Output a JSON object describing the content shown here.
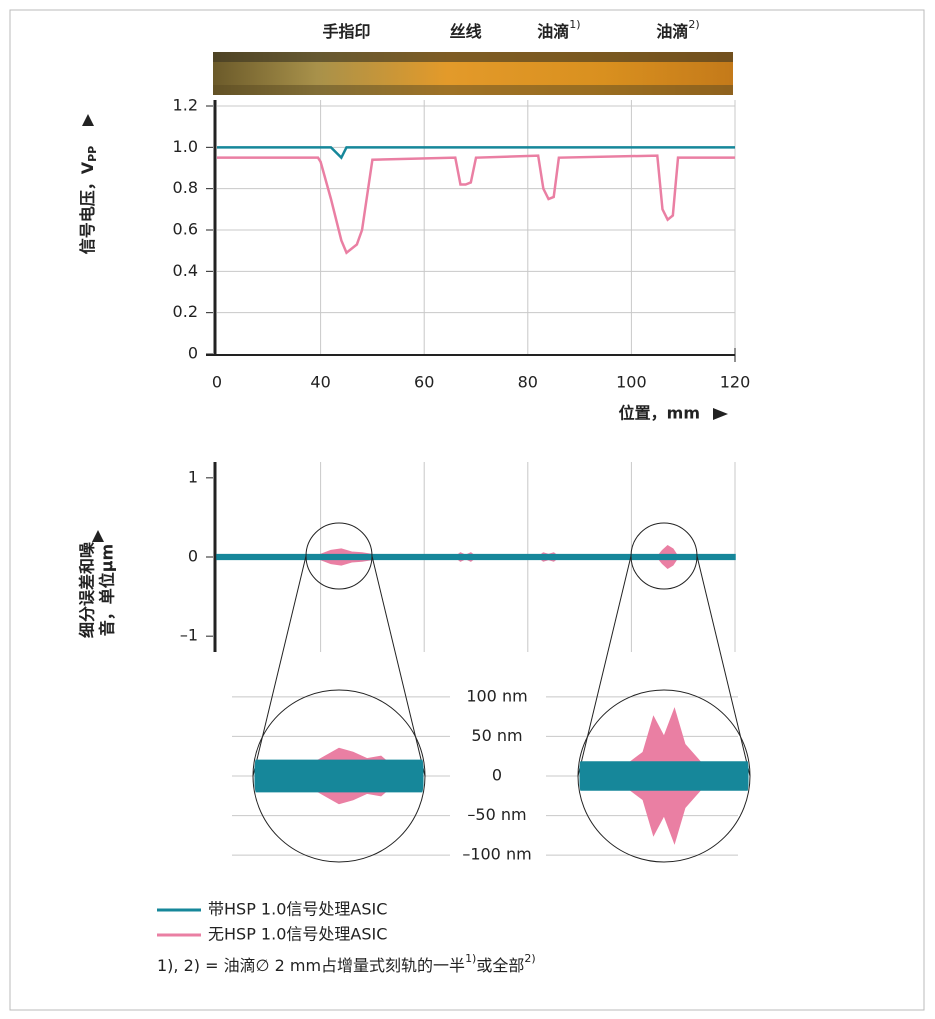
{
  "chart_data": [
    {
      "type": "line",
      "annotations": [
        {
          "text": "手指印",
          "x": 45
        },
        {
          "text": "丝线",
          "x": 68
        },
        {
          "text": "油滴",
          "sup": "1)",
          "x": 86
        },
        {
          "text": "油滴",
          "sup": "2)",
          "x": 109
        }
      ],
      "ylabel": "信号电压，V",
      "ylabel_sub": "PP",
      "xlabel": "位置，mm",
      "x": [
        0,
        39,
        40,
        42,
        44,
        45,
        47,
        48,
        50,
        66,
        67,
        68,
        69,
        70,
        82,
        83,
        84,
        85,
        86,
        105,
        106,
        107,
        108,
        109,
        120
      ],
      "series": [
        {
          "name": "带HSP 1.0信号处理ASIC",
          "color": "#16879a",
          "values": [
            1,
            1,
            1,
            1,
            0.95,
            1,
            1,
            1,
            1,
            1,
            1,
            1,
            1,
            1,
            1,
            1,
            1,
            1,
            1,
            1,
            1,
            1,
            1,
            1,
            1
          ]
        },
        {
          "name": "无HSP 1.0信号处理ASIC",
          "color": "#ea7fa3",
          "values": [
            0.95,
            0.95,
            0.93,
            0.75,
            0.55,
            0.49,
            0.53,
            0.6,
            0.94,
            0.95,
            0.82,
            0.82,
            0.83,
            0.95,
            0.96,
            0.8,
            0.75,
            0.76,
            0.95,
            0.96,
            0.7,
            0.65,
            0.67,
            0.95,
            0.95
          ]
        }
      ],
      "xlim": [
        0,
        120
      ],
      "xticks": [
        0,
        40,
        60,
        80,
        100,
        120
      ],
      "ylim": [
        0,
        1.2
      ],
      "yticks": [
        0,
        0.2,
        0.4,
        0.6,
        0.8,
        {
          "value": 1,
          "label": "1.0"
        },
        1.2
      ],
      "grid": true
    },
    {
      "type": "envelope",
      "ylabel": [
        "细分误差和噪",
        "音，单位µm"
      ],
      "x": [
        0,
        38,
        40,
        42,
        44,
        46,
        48,
        50,
        52,
        66,
        67,
        68,
        69,
        70,
        82,
        83,
        84,
        85,
        86,
        105,
        106,
        107,
        108,
        109,
        120
      ],
      "series": [
        {
          "color": "#16879a",
          "values": [
            0.03,
            0.03,
            0.03,
            0.03,
            0.03,
            0.03,
            0.03,
            0.03,
            0.03,
            0.03,
            0.03,
            0.03,
            0.03,
            0.03,
            0.03,
            0.03,
            0.03,
            0.03,
            0.03,
            0.03,
            0.03,
            0.03,
            0.03,
            0.03,
            0.03
          ]
        },
        {
          "color": "#ea7fa3",
          "values": [
            0,
            0,
            0.03,
            0.08,
            0.1,
            0.06,
            0.05,
            0.03,
            0,
            0,
            0.05,
            0.02,
            0.05,
            0,
            0,
            0.05,
            0.03,
            0.05,
            0,
            0,
            0.08,
            0.14,
            0.1,
            0,
            0
          ]
        }
      ],
      "ylim": [
        -1.2,
        1.2
      ],
      "yticks": [
        {
          "value": -1,
          "label": "–1"
        },
        0,
        1
      ],
      "grid": true
    },
    {
      "type": "zoom",
      "ylim": [
        -120,
        120
      ],
      "yticks": [
        {
          "value": 100,
          "label": "100 nm"
        },
        {
          "value": 50,
          "label": "50 nm"
        },
        0,
        {
          "value": -50,
          "label": "–50 nm"
        },
        {
          "value": -100,
          "label": "–100 nm"
        }
      ],
      "panels": [
        {
          "xlim": [
            38,
            50
          ],
          "x": [
            38,
            40,
            42,
            43,
            44,
            45,
            46,
            47,
            48,
            50
          ],
          "series": [
            {
              "color": "#ea7fa3",
              "values": [
                0,
                5,
                15,
                25,
                35,
                30,
                22,
                25,
                10,
                0
              ]
            },
            {
              "color": "#16879a",
              "values": [
                20,
                20,
                20,
                20,
                20,
                20,
                20,
                20,
                20,
                20
              ]
            }
          ]
        },
        {
          "xlim": [
            103,
            111
          ],
          "x": [
            103,
            105,
            106,
            106.5,
            107,
            107.5,
            108,
            109,
            111
          ],
          "series": [
            {
              "color": "#ea7fa3",
              "values": [
                0,
                10,
                30,
                75,
                50,
                85,
                40,
                10,
                0
              ]
            },
            {
              "color": "#16879a",
              "values": [
                18,
                18,
                18,
                18,
                18,
                18,
                18,
                18,
                18
              ]
            }
          ]
        }
      ]
    }
  ],
  "note": [
    "1), 2) = 油滴∅ 2 mm占增量式刻轨的一半",
    "1)",
    "或全部",
    "2)"
  ]
}
